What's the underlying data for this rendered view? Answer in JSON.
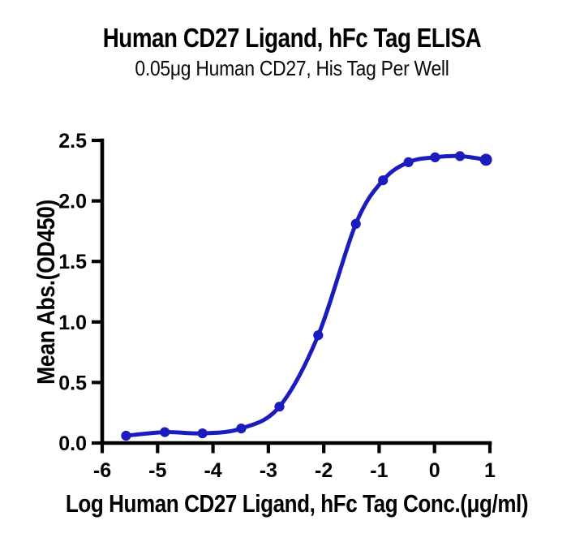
{
  "figure": {
    "title": "Human CD27 Ligand, hFc Tag ELISA",
    "subtitle": "0.05μg Human CD27, His Tag Per Well"
  },
  "chart_data": {
    "type": "line",
    "title": "Human CD27 Ligand, hFc Tag ELISA",
    "subtitle": "0.05μg Human CD27, His Tag Per Well",
    "xlabel": "Log Human CD27 Ligand, hFc Tag Conc.(μg/ml)",
    "ylabel": "Mean Abs.(OD450)",
    "xlim": [
      -6,
      1
    ],
    "ylim": [
      0,
      2.5
    ],
    "x_ticks": [
      -6,
      -5,
      -4,
      -3,
      -2,
      -1,
      0,
      1
    ],
    "x_tick_labels": [
      "-6",
      "-5",
      "-4",
      "-3",
      "-2",
      "-1",
      "0",
      "1"
    ],
    "y_ticks": [
      0,
      0.5,
      1,
      1.5,
      2,
      2.5
    ],
    "y_tick_labels": [
      "0.0",
      "0.5",
      "1.0",
      "1.5",
      "2.0",
      "2.5"
    ],
    "grid": false,
    "legend": false,
    "axis_color": "#000000",
    "series": [
      {
        "name": "Human CD27 Ligand, hFc Tag",
        "color": "#1c1cbe",
        "marker": "circle",
        "points": [
          {
            "x": -5.57,
            "y": 0.06
          },
          {
            "x": -4.87,
            "y": 0.09
          },
          {
            "x": -4.19,
            "y": 0.08
          },
          {
            "x": -3.49,
            "y": 0.12
          },
          {
            "x": -2.8,
            "y": 0.3
          },
          {
            "x": -2.1,
            "y": 0.89
          },
          {
            "x": -1.42,
            "y": 1.81
          },
          {
            "x": -0.93,
            "y": 2.17
          },
          {
            "x": -0.47,
            "y": 2.32
          },
          {
            "x": 0.01,
            "y": 2.36
          },
          {
            "x": 0.46,
            "y": 2.37
          },
          {
            "x": 0.93,
            "y": 2.34
          }
        ]
      }
    ]
  }
}
